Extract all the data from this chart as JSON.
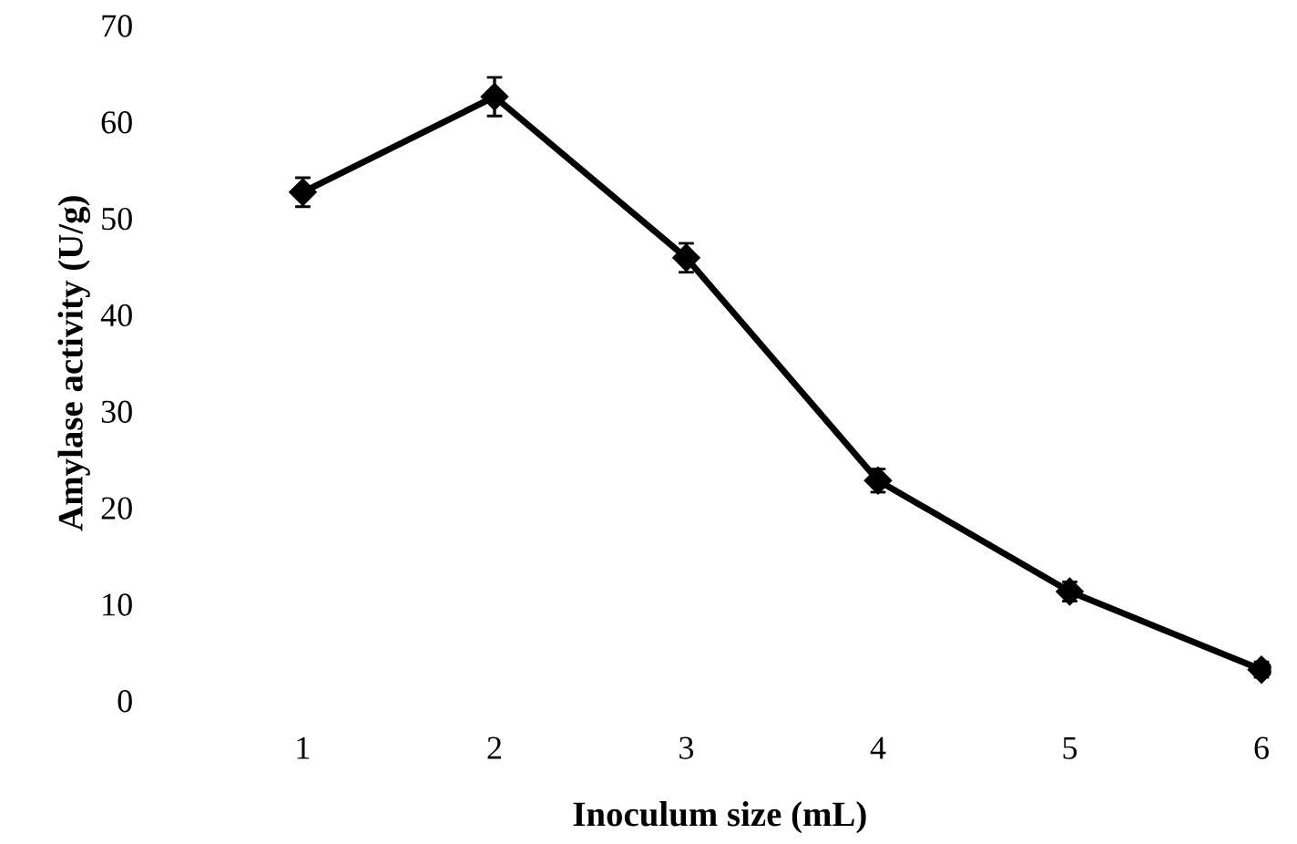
{
  "chart_data": {
    "type": "line",
    "xlabel": "Inoculum size (mL)",
    "ylabel": "Amylase activity (U/g)",
    "categories": [
      "1",
      "2",
      "3",
      "4",
      "5",
      "6"
    ],
    "series": [
      {
        "color": "#000000",
        "values": [
          52.7,
          62.6,
          45.9,
          22.8,
          11.3,
          3.2
        ],
        "errors": [
          1.5,
          2,
          1.5,
          1.2,
          1,
          0.8
        ]
      }
    ],
    "ylim": [
      0,
      70
    ],
    "yticks": [
      0,
      10,
      20,
      30,
      40,
      50,
      60,
      70
    ],
    "grid": false,
    "legend": false,
    "marker": "diamond",
    "line_style": "solid"
  }
}
